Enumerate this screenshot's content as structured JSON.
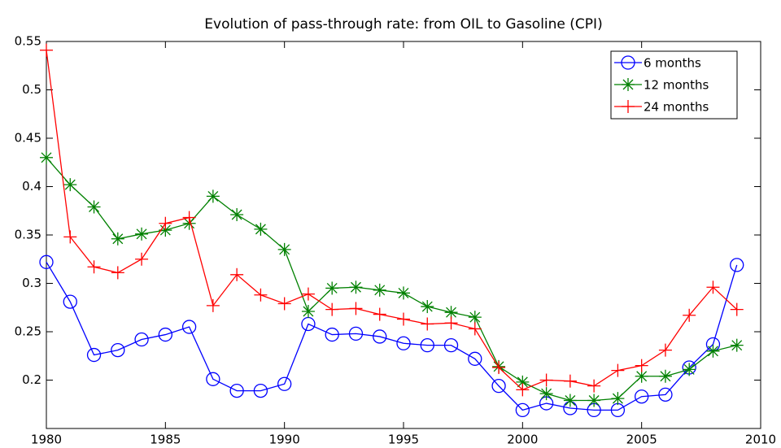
{
  "chart_data": {
    "type": "line",
    "title": "Evolution of pass-through rate: from OIL to Gasoline (CPI)",
    "x": [
      1980,
      1981,
      1982,
      1983,
      1984,
      1985,
      1986,
      1987,
      1988,
      1989,
      1990,
      1991,
      1992,
      1993,
      1994,
      1995,
      1996,
      1997,
      1998,
      1999,
      2000,
      2001,
      2002,
      2003,
      2004,
      2005,
      2006,
      2007,
      2008,
      2009
    ],
    "series": [
      {
        "name": "6 months",
        "color": "#0000ff",
        "marker": "circle",
        "values": [
          0.322,
          0.281,
          0.226,
          0.231,
          0.242,
          0.247,
          0.255,
          0.201,
          0.189,
          0.189,
          0.196,
          0.258,
          0.247,
          0.248,
          0.245,
          0.238,
          0.236,
          0.236,
          0.222,
          0.194,
          0.169,
          0.176,
          0.171,
          0.169,
          0.169,
          0.183,
          0.185,
          0.213,
          0.237,
          0.319
        ]
      },
      {
        "name": "12 months",
        "color": "#008000",
        "marker": "asterisk",
        "values": [
          0.43,
          0.402,
          0.379,
          0.346,
          0.351,
          0.355,
          0.362,
          0.39,
          0.371,
          0.356,
          0.335,
          0.271,
          0.295,
          0.296,
          0.293,
          0.29,
          0.276,
          0.27,
          0.265,
          0.214,
          0.198,
          0.186,
          0.179,
          0.179,
          0.181,
          0.204,
          0.204,
          0.211,
          0.23,
          0.236
        ]
      },
      {
        "name": "24 months",
        "color": "#ff0000",
        "marker": "plus",
        "values": [
          0.541,
          0.348,
          0.317,
          0.311,
          0.325,
          0.362,
          0.368,
          0.277,
          0.309,
          0.288,
          0.279,
          0.289,
          0.273,
          0.274,
          0.268,
          0.263,
          0.258,
          0.259,
          0.253,
          0.213,
          0.19,
          0.2,
          0.199,
          0.194,
          0.21,
          0.215,
          0.231,
          0.267,
          0.296,
          0.273
        ]
      }
    ],
    "xlim": [
      1980,
      2010
    ],
    "xticks": [
      1980,
      1985,
      1990,
      1995,
      2000,
      2005,
      2010
    ],
    "ylim": [
      0.15,
      0.55
    ],
    "yticks": [
      0.2,
      0.25,
      0.3,
      0.35,
      0.4,
      0.45,
      0.5,
      0.55
    ],
    "grid": false,
    "legend": "top-right"
  }
}
